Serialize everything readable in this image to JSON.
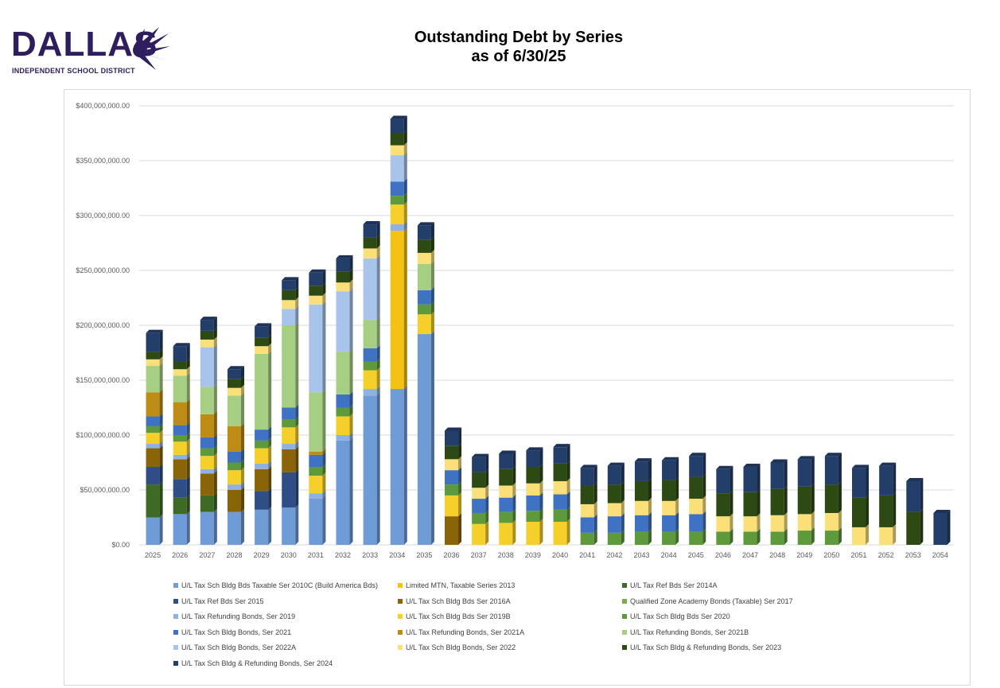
{
  "header": {
    "logo_word": "DALLAS",
    "logo_subtitle": "INDEPENDENT SCHOOL DISTRICT",
    "title_line1": "Outstanding Debt by Series",
    "title_line2": "as of 6/30/25"
  },
  "colors": {
    "brand_purple": "#2e1e5e",
    "gridline": "#d9d9d9",
    "axis_text": "#595959"
  },
  "chart_data": {
    "type": "bar",
    "stacked": true,
    "title": "Outstanding Debt by Series",
    "subtitle": "as of 6/30/25",
    "xlabel": "",
    "ylabel": "",
    "ylim": [
      0,
      400000000
    ],
    "y_ticks": [
      "$0.00",
      "$50,000,000.00",
      "$100,000,000.00",
      "$150,000,000.00",
      "$200,000,000.00",
      "$250,000,000.00",
      "$300,000,000.00",
      "$350,000,000.00",
      "$400,000,000.00"
    ],
    "grid": true,
    "legend_position": "bottom",
    "categories": [
      "2025",
      "2026",
      "2027",
      "2028",
      "2029",
      "2030",
      "2031",
      "2032",
      "2033",
      "2034",
      "2035",
      "2036",
      "2037",
      "2038",
      "2039",
      "2040",
      "2041",
      "2042",
      "2043",
      "2044",
      "2045",
      "2046",
      "2047",
      "2048",
      "2049",
      "2050",
      "2051",
      "2052",
      "2053",
      "2054"
    ],
    "series": [
      {
        "name": "U/L Tax Sch Bldg Bds Taxable Ser 2010C (Build America Bds)",
        "color": "#6f9bd6",
        "values": [
          25000000,
          28000000,
          30000000,
          30000000,
          32000000,
          34000000,
          42000000,
          95000000,
          136000000,
          142000000,
          192000000,
          0,
          0,
          0,
          0,
          0,
          0,
          0,
          0,
          0,
          0,
          0,
          0,
          0,
          0,
          0,
          0,
          0,
          0,
          0
        ]
      },
      {
        "name": "Limited MTN, Taxable Series 2013",
        "color": "#f3c212",
        "values": [
          0,
          0,
          0,
          0,
          0,
          0,
          0,
          0,
          0,
          144000000,
          0,
          0,
          0,
          0,
          0,
          0,
          0,
          0,
          0,
          0,
          0,
          0,
          0,
          0,
          0,
          0,
          0,
          0,
          0,
          0
        ]
      },
      {
        "name": "U/L Tax Ref Bds Ser 2014A",
        "color": "#3f6a26",
        "values": [
          30000000,
          15000000,
          15000000,
          0,
          0,
          0,
          0,
          0,
          0,
          0,
          0,
          0,
          0,
          0,
          0,
          0,
          0,
          0,
          0,
          0,
          0,
          0,
          0,
          0,
          0,
          0,
          0,
          0,
          0,
          0
        ]
      },
      {
        "name": "U/L Tax Ref Bds Ser 2015",
        "color": "#2f4e86",
        "values": [
          16000000,
          17000000,
          0,
          0,
          17000000,
          32000000,
          0,
          0,
          0,
          0,
          0,
          0,
          0,
          0,
          0,
          0,
          0,
          0,
          0,
          0,
          0,
          0,
          0,
          0,
          0,
          0,
          0,
          0,
          0,
          0
        ]
      },
      {
        "name": "U/L Tax Sch Bldg Bds Ser 2016A",
        "color": "#8a6408",
        "values": [
          17000000,
          18000000,
          20000000,
          20000000,
          20000000,
          21000000,
          0,
          0,
          0,
          0,
          0,
          26000000,
          0,
          0,
          0,
          0,
          0,
          0,
          0,
          0,
          0,
          0,
          0,
          0,
          0,
          0,
          0,
          0,
          0,
          0
        ]
      },
      {
        "name": "Qualified Zone Academy Bonds (Taxable) Ser 2017",
        "color": "#7aac50",
        "values": [
          0,
          0,
          0,
          0,
          0,
          0,
          0,
          0,
          0,
          0,
          0,
          0,
          0,
          0,
          0,
          0,
          0,
          0,
          0,
          0,
          0,
          0,
          0,
          0,
          0,
          0,
          0,
          0,
          0,
          0
        ]
      },
      {
        "name": "U/L Tax Refunding Bonds, Ser 2019",
        "color": "#8fb2e0",
        "values": [
          4000000,
          4000000,
          4000000,
          5000000,
          5000000,
          5000000,
          5000000,
          5000000,
          6000000,
          6000000,
          0,
          0,
          0,
          0,
          0,
          0,
          0,
          0,
          0,
          0,
          0,
          0,
          0,
          0,
          0,
          0,
          0,
          0,
          0,
          0
        ]
      },
      {
        "name": "U/L Tax Sch Bldg Bds Ser 2019B",
        "color": "#f5cf2a",
        "values": [
          10000000,
          12000000,
          12000000,
          13000000,
          14000000,
          15000000,
          16000000,
          17000000,
          17000000,
          18000000,
          18000000,
          19000000,
          19000000,
          20000000,
          21000000,
          21000000,
          0,
          0,
          0,
          0,
          0,
          0,
          0,
          0,
          0,
          0,
          0,
          0,
          0,
          0
        ]
      },
      {
        "name": "U/L Tax Sch Bldg Bds Ser 2020",
        "color": "#5e9a3c",
        "values": [
          6000000,
          6000000,
          7000000,
          7000000,
          7000000,
          7000000,
          8000000,
          8000000,
          8000000,
          8000000,
          9000000,
          10000000,
          10000000,
          10000000,
          10000000,
          11000000,
          11000000,
          11000000,
          12000000,
          12000000,
          12000000,
          12000000,
          12000000,
          12000000,
          13000000,
          13000000,
          0,
          0,
          0,
          0
        ]
      },
      {
        "name": "U/L Tax Sch Bldg Bonds, Ser 2021",
        "color": "#3f72c2",
        "values": [
          9000000,
          9000000,
          10000000,
          10000000,
          10000000,
          11000000,
          11000000,
          12000000,
          12000000,
          13000000,
          13000000,
          13000000,
          13000000,
          13000000,
          14000000,
          14000000,
          14000000,
          15000000,
          15000000,
          15000000,
          16000000,
          0,
          0,
          0,
          0,
          0,
          0,
          0,
          0,
          0
        ]
      },
      {
        "name": "U/L Tax Refunding Bonds, Ser 2021A",
        "color": "#bc8c14",
        "values": [
          22000000,
          21000000,
          21000000,
          23000000,
          0,
          0,
          3000000,
          0,
          0,
          0,
          0,
          0,
          0,
          0,
          0,
          0,
          0,
          0,
          0,
          0,
          0,
          0,
          0,
          0,
          0,
          0,
          0,
          0,
          0,
          0
        ]
      },
      {
        "name": "U/L Tax Refunding Bonds, Ser 2021B",
        "color": "#a7cf84",
        "values": [
          24000000,
          24000000,
          25000000,
          28000000,
          69000000,
          75000000,
          54000000,
          39000000,
          26000000,
          0,
          24000000,
          0,
          0,
          0,
          0,
          0,
          0,
          0,
          0,
          0,
          0,
          0,
          0,
          0,
          0,
          0,
          0,
          0,
          0,
          0
        ]
      },
      {
        "name": "U/L Tax Sch Bldg Bonds, Ser 2022A",
        "color": "#a8c4ea",
        "values": [
          0,
          0,
          36000000,
          0,
          0,
          15000000,
          80000000,
          55000000,
          56000000,
          24000000,
          0,
          0,
          0,
          0,
          0,
          0,
          0,
          0,
          0,
          0,
          0,
          0,
          0,
          0,
          0,
          0,
          0,
          0,
          0,
          0
        ]
      },
      {
        "name": "U/L Tax Sch Bldg Bonds, Ser 2022",
        "color": "#fbe07a",
        "values": [
          6000000,
          6000000,
          7000000,
          7000000,
          7000000,
          8000000,
          8000000,
          8000000,
          9000000,
          9000000,
          10000000,
          10000000,
          10000000,
          11000000,
          11000000,
          12000000,
          12000000,
          12000000,
          13000000,
          13000000,
          14000000,
          14000000,
          14000000,
          15000000,
          15000000,
          16000000,
          16000000,
          16000000,
          0,
          0
        ]
      },
      {
        "name": "U/L Tax Sch Bldg & Refunding Bonds, Ser 2023",
        "color": "#2e4a14",
        "values": [
          7000000,
          7000000,
          8000000,
          8000000,
          8000000,
          9000000,
          9000000,
          10000000,
          10000000,
          11000000,
          12000000,
          12000000,
          14000000,
          15000000,
          15000000,
          16000000,
          17000000,
          17000000,
          18000000,
          19000000,
          20000000,
          21000000,
          22000000,
          24000000,
          25000000,
          26000000,
          27000000,
          29000000,
          30000000,
          0
        ]
      },
      {
        "name": "U/L Tax Sch Bldg & Refunding Bonds, Ser 2024",
        "color": "#243e6a",
        "values": [
          17000000,
          14000000,
          10000000,
          9000000,
          10000000,
          9000000,
          12000000,
          12000000,
          12000000,
          13000000,
          13000000,
          14000000,
          14000000,
          14000000,
          15000000,
          15000000,
          16000000,
          17000000,
          18000000,
          18000000,
          19000000,
          22000000,
          23000000,
          24000000,
          25000000,
          26000000,
          27000000,
          27000000,
          28000000,
          29000000
        ]
      }
    ]
  }
}
